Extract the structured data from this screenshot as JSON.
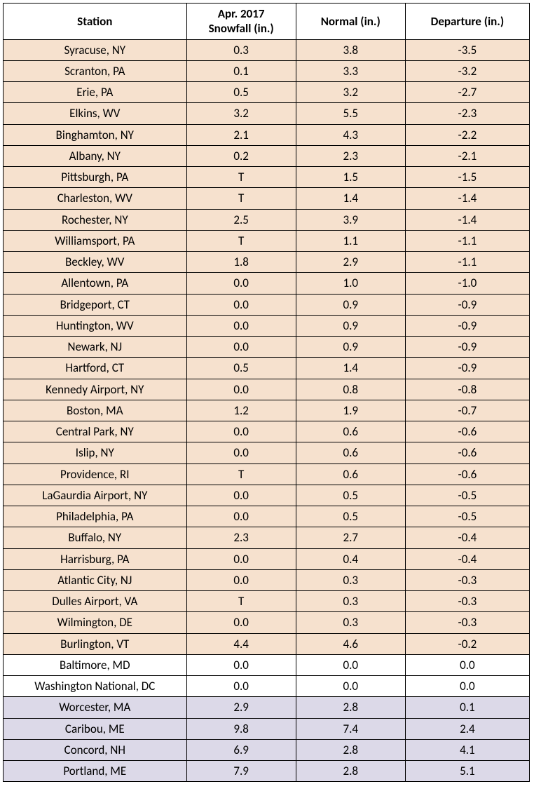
{
  "colors": {
    "negative": "#f6e1ce",
    "zero": "#ffffff",
    "positive": "#dcd9e8",
    "border": "#000000",
    "text": "#000000"
  },
  "headers": {
    "station_l1": "",
    "station_l2": "Station",
    "snow_l1": "Apr. 2017",
    "snow_l2": "Snowfall (in.)",
    "normal_l1": "",
    "normal_l2": "Normal (in.)",
    "dep_l1": "",
    "dep_l2": "Departure (in.)"
  },
  "rows": [
    {
      "station": "Syracuse, NY",
      "snow": "0.3",
      "normal": "3.8",
      "dep": "-3.5",
      "cat": "neg"
    },
    {
      "station": "Scranton, PA",
      "snow": "0.1",
      "normal": "3.3",
      "dep": "-3.2",
      "cat": "neg"
    },
    {
      "station": "Erie, PA",
      "snow": "0.5",
      "normal": "3.2",
      "dep": "-2.7",
      "cat": "neg"
    },
    {
      "station": "Elkins, WV",
      "snow": "3.2",
      "normal": "5.5",
      "dep": "-2.3",
      "cat": "neg"
    },
    {
      "station": "Binghamton, NY",
      "snow": "2.1",
      "normal": "4.3",
      "dep": "-2.2",
      "cat": "neg"
    },
    {
      "station": "Albany, NY",
      "snow": "0.2",
      "normal": "2.3",
      "dep": "-2.1",
      "cat": "neg"
    },
    {
      "station": "Pittsburgh, PA",
      "snow": "T",
      "normal": "1.5",
      "dep": "-1.5",
      "cat": "neg"
    },
    {
      "station": "Charleston, WV",
      "snow": "T",
      "normal": "1.4",
      "dep": "-1.4",
      "cat": "neg"
    },
    {
      "station": "Rochester, NY",
      "snow": "2.5",
      "normal": "3.9",
      "dep": "-1.4",
      "cat": "neg"
    },
    {
      "station": "Williamsport, PA",
      "snow": "T",
      "normal": "1.1",
      "dep": "-1.1",
      "cat": "neg"
    },
    {
      "station": "Beckley, WV",
      "snow": "1.8",
      "normal": "2.9",
      "dep": "-1.1",
      "cat": "neg"
    },
    {
      "station": "Allentown, PA",
      "snow": "0.0",
      "normal": "1.0",
      "dep": "-1.0",
      "cat": "neg"
    },
    {
      "station": "Bridgeport, CT",
      "snow": "0.0",
      "normal": "0.9",
      "dep": "-0.9",
      "cat": "neg"
    },
    {
      "station": "Huntington, WV",
      "snow": "0.0",
      "normal": "0.9",
      "dep": "-0.9",
      "cat": "neg"
    },
    {
      "station": "Newark, NJ",
      "snow": "0.0",
      "normal": "0.9",
      "dep": "-0.9",
      "cat": "neg"
    },
    {
      "station": "Hartford, CT",
      "snow": "0.5",
      "normal": "1.4",
      "dep": "-0.9",
      "cat": "neg"
    },
    {
      "station": "Kennedy Airport, NY",
      "snow": "0.0",
      "normal": "0.8",
      "dep": "-0.8",
      "cat": "neg"
    },
    {
      "station": "Boston, MA",
      "snow": "1.2",
      "normal": "1.9",
      "dep": "-0.7",
      "cat": "neg"
    },
    {
      "station": "Central Park, NY",
      "snow": "0.0",
      "normal": "0.6",
      "dep": "-0.6",
      "cat": "neg"
    },
    {
      "station": "Islip, NY",
      "snow": "0.0",
      "normal": "0.6",
      "dep": "-0.6",
      "cat": "neg"
    },
    {
      "station": "Providence, RI",
      "snow": "T",
      "normal": "0.6",
      "dep": "-0.6",
      "cat": "neg"
    },
    {
      "station": "LaGaurdia Airport, NY",
      "snow": "0.0",
      "normal": "0.5",
      "dep": "-0.5",
      "cat": "neg"
    },
    {
      "station": "Philadelphia, PA",
      "snow": "0.0",
      "normal": "0.5",
      "dep": "-0.5",
      "cat": "neg"
    },
    {
      "station": "Buffalo, NY",
      "snow": "2.3",
      "normal": "2.7",
      "dep": "-0.4",
      "cat": "neg"
    },
    {
      "station": "Harrisburg, PA",
      "snow": "0.0",
      "normal": "0.4",
      "dep": "-0.4",
      "cat": "neg"
    },
    {
      "station": "Atlantic City, NJ",
      "snow": "0.0",
      "normal": "0.3",
      "dep": "-0.3",
      "cat": "neg"
    },
    {
      "station": "Dulles Airport, VA",
      "snow": "T",
      "normal": "0.3",
      "dep": "-0.3",
      "cat": "neg"
    },
    {
      "station": "Wilmington, DE",
      "snow": "0.0",
      "normal": "0.3",
      "dep": "-0.3",
      "cat": "neg"
    },
    {
      "station": "Burlington, VT",
      "snow": "4.4",
      "normal": "4.6",
      "dep": "-0.2",
      "cat": "neg"
    },
    {
      "station": "Baltimore, MD",
      "snow": "0.0",
      "normal": "0.0",
      "dep": "0.0",
      "cat": "zero"
    },
    {
      "station": "Washington National, DC",
      "snow": "0.0",
      "normal": "0.0",
      "dep": "0.0",
      "cat": "zero"
    },
    {
      "station": "Worcester, MA",
      "snow": "2.9",
      "normal": "2.8",
      "dep": "0.1",
      "cat": "pos"
    },
    {
      "station": "Caribou, ME",
      "snow": "9.8",
      "normal": "7.4",
      "dep": "2.4",
      "cat": "pos"
    },
    {
      "station": "Concord, NH",
      "snow": "6.9",
      "normal": "2.8",
      "dep": "4.1",
      "cat": "pos"
    },
    {
      "station": "Portland, ME",
      "snow": "7.9",
      "normal": "2.8",
      "dep": "5.1",
      "cat": "pos"
    }
  ]
}
